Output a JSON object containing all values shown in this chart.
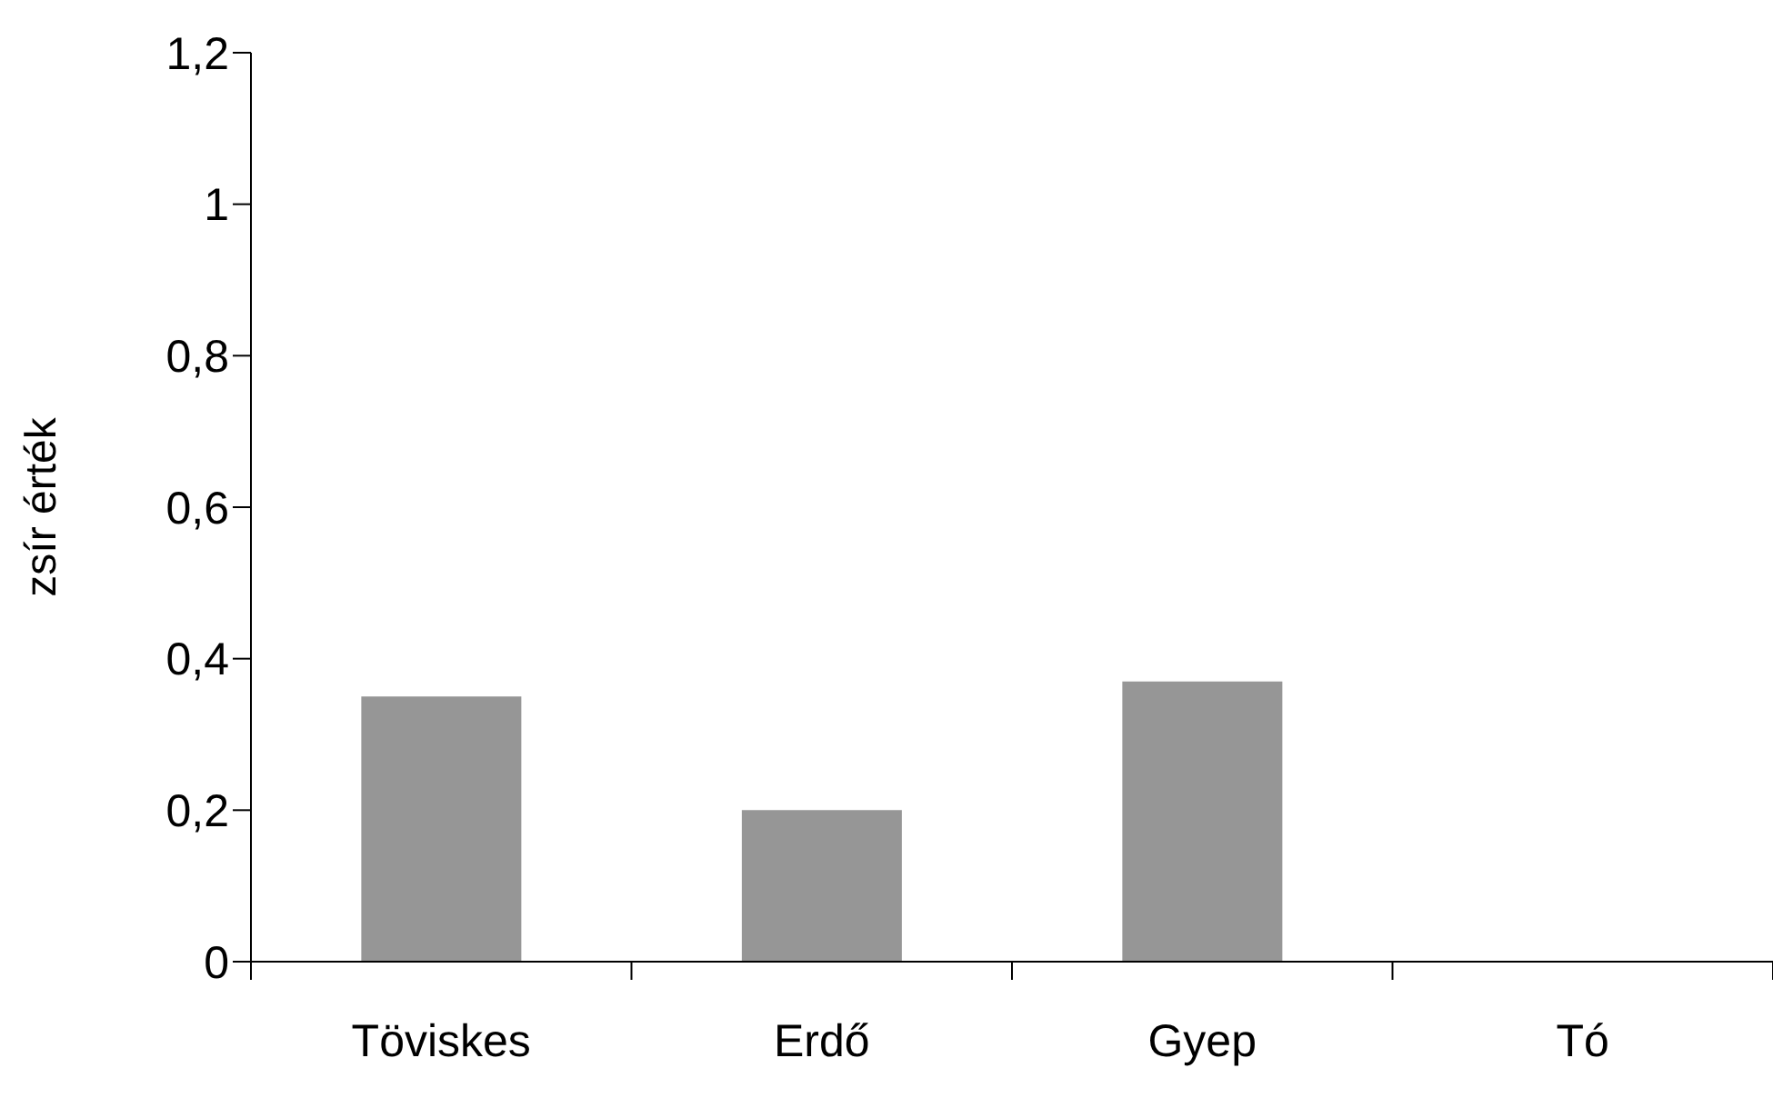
{
  "chart_data": {
    "type": "bar",
    "ylabel": "zsír érték",
    "categories": [
      "Töviskes",
      "Erdő",
      "Gyep",
      "Tó"
    ],
    "values": [
      0.35,
      0.2,
      0.37,
      0
    ],
    "color": "#969696",
    "ylim": [
      0,
      1.2
    ],
    "yticks": [
      0,
      {
        "value": 0.2,
        "label": "0,2"
      },
      {
        "value": 0.4,
        "label": "0,4"
      },
      {
        "value": 0.6,
        "label": "0,6"
      },
      {
        "value": 0.8,
        "label": "0,8"
      },
      1,
      {
        "value": 1.2,
        "label": "1,2"
      }
    ],
    "grid": false,
    "legend": false
  }
}
